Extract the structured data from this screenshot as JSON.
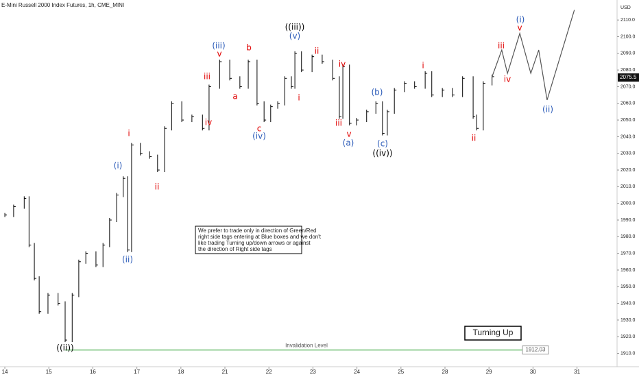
{
  "chart_data": {
    "type": "bars",
    "title": "E-Mini Russell 2000 Index Futures, 1h, CME_MINI",
    "currency": "USD",
    "color": "#000000",
    "xlim": [
      -0.11,
      13.91
    ],
    "xticks": [
      {
        "value": 0,
        "label": "14"
      },
      {
        "value": 1,
        "label": "15"
      },
      {
        "value": 2,
        "label": "16"
      },
      {
        "value": 3,
        "label": "17"
      },
      {
        "value": 4,
        "label": "18"
      },
      {
        "value": 5,
        "label": "21"
      },
      {
        "value": 6,
        "label": "22"
      },
      {
        "value": 7,
        "label": "23"
      },
      {
        "value": 8,
        "label": "24"
      },
      {
        "value": 9,
        "label": "25"
      },
      {
        "value": 10,
        "label": "28"
      },
      {
        "value": 11,
        "label": "29"
      },
      {
        "value": 12,
        "label": "30"
      },
      {
        "value": 13,
        "label": "31"
      }
    ],
    "ylim": [
      1902,
      2122
    ],
    "yticks": [
      {
        "value": 1910,
        "label": "1910.0"
      },
      {
        "value": 1920,
        "label": "1920.0"
      },
      {
        "value": 1930,
        "label": "1930.0"
      },
      {
        "value": 1940,
        "label": "1940.0"
      },
      {
        "value": 1950,
        "label": "1950.0"
      },
      {
        "value": 1960,
        "label": "1960.0"
      },
      {
        "value": 1970,
        "label": "1970.0"
      },
      {
        "value": 1980,
        "label": "1980.0"
      },
      {
        "value": 1990,
        "label": "1990.0"
      },
      {
        "value": 2000,
        "label": "2000.0"
      },
      {
        "value": 2010,
        "label": "2010.0"
      },
      {
        "value": 2020,
        "label": "2020.0"
      },
      {
        "value": 2030,
        "label": "2030.0"
      },
      {
        "value": 2040,
        "label": "2040.0"
      },
      {
        "value": 2050,
        "label": "2050.0"
      },
      {
        "value": 2060,
        "label": "2060.0"
      },
      {
        "value": 2070,
        "label": "2070.0"
      },
      {
        "value": 2080,
        "label": "2080.0"
      },
      {
        "value": 2090,
        "label": "2090.0"
      },
      {
        "value": 2100,
        "label": "2100.0"
      },
      {
        "value": 2110,
        "label": "2110.0"
      }
    ],
    "x": [
      0,
      0.2,
      0.44,
      0.55,
      0.67,
      0.78,
      0.98,
      1.21,
      1.37,
      1.53,
      1.68,
      1.84,
      2.07,
      2.23,
      2.38,
      2.54,
      2.69,
      2.79,
      2.88,
      3.08,
      3.29,
      3.47,
      3.63,
      3.79,
      4.02,
      4.25,
      4.49,
      4.64,
      4.88,
      5.11,
      5.34,
      5.53,
      5.73,
      5.89,
      6.04,
      6.2,
      6.36,
      6.51,
      6.59,
      6.74,
      6.98,
      7.21,
      7.45,
      7.6,
      7.68,
      7.83,
      7.99,
      8.22,
      8.43,
      8.58,
      8.69,
      8.85,
      9.08,
      9.31,
      9.55,
      9.7,
      9.94,
      10.17,
      10.4,
      10.64,
      10.72,
      10.87,
      11.07
    ],
    "values": [
      1993,
      1998,
      2003,
      1975,
      1955,
      1935,
      1945,
      1940,
      1918,
      1945,
      1965,
      1970,
      1963,
      1975,
      1990,
      2005,
      2015,
      1972,
      2035,
      2030,
      2028,
      2020,
      2045,
      2060,
      2050,
      2052,
      2045,
      2070,
      2085,
      2075,
      2070,
      2085,
      2060,
      2050,
      2058,
      2060,
      2075,
      2070,
      2090,
      2080,
      2088,
      2085,
      2075,
      2052,
      2082,
      2048,
      2050,
      2055,
      2060,
      2042,
      2055,
      2068,
      2072,
      2070,
      2078,
      2065,
      2068,
      2065,
      2075,
      2052,
      2045,
      2072,
      2076
    ],
    "projection": {
      "color": "#555555",
      "x": [
        11.07,
        11.29,
        11.42,
        11.7,
        11.95,
        12.13,
        12.32,
        12.94
      ],
      "values": [
        2076,
        2092,
        2078,
        2102,
        2078,
        2092,
        2062,
        2116
      ]
    },
    "last_price": 2075.5,
    "invalidation": {
      "value": 1912.03,
      "label": "Invalidation Level",
      "color": "#4caf50"
    },
    "signal": "Turning Up",
    "note": [
      "We prefer to trade only in direction of Green/Red",
      "right side tags entering at Blue boxes and we don't",
      "like trading Turning up/down arrows or against",
      "the direction of Right side tags"
    ],
    "annotations": [
      {
        "text": "((ii))",
        "color": "#000000"
      },
      {
        "text": "(i)",
        "color": "#2a5ab8"
      },
      {
        "text": "(ii)",
        "color": "#2a5ab8"
      },
      {
        "text": "i",
        "color": "#e00000"
      },
      {
        "text": "ii",
        "color": "#e00000"
      },
      {
        "text": "iii",
        "color": "#e00000"
      },
      {
        "text": "iv",
        "color": "#e00000"
      },
      {
        "text": "(iii)",
        "color": "#2a5ab8"
      },
      {
        "text": "v",
        "color": "#e00000"
      },
      {
        "text": "a",
        "color": "#e00000"
      },
      {
        "text": "b",
        "color": "#e00000"
      },
      {
        "text": "c",
        "color": "#e00000"
      },
      {
        "text": "(iv)",
        "color": "#2a5ab8"
      },
      {
        "text": "((iii))",
        "color": "#000000"
      },
      {
        "text": "(v)",
        "color": "#2a5ab8"
      },
      {
        "text": "i",
        "color": "#e00000"
      },
      {
        "text": "ii",
        "color": "#e00000"
      },
      {
        "text": "iv",
        "color": "#e00000"
      },
      {
        "text": "iii",
        "color": "#e00000"
      },
      {
        "text": "v",
        "color": "#e00000"
      },
      {
        "text": "(a)",
        "color": "#2a5ab8"
      },
      {
        "text": "(b)",
        "color": "#2a5ab8"
      },
      {
        "text": "(c)",
        "color": "#2a5ab8"
      },
      {
        "text": "((iv))",
        "color": "#000000"
      },
      {
        "text": "i",
        "color": "#e00000"
      },
      {
        "text": "ii",
        "color": "#e00000"
      },
      {
        "text": "iii",
        "color": "#e00000"
      },
      {
        "text": "iv",
        "color": "#e00000"
      },
      {
        "text": "v",
        "color": "#e00000"
      },
      {
        "text": "(i)",
        "color": "#2a5ab8"
      },
      {
        "text": "(ii)",
        "color": "#2a5ab8"
      }
    ]
  }
}
